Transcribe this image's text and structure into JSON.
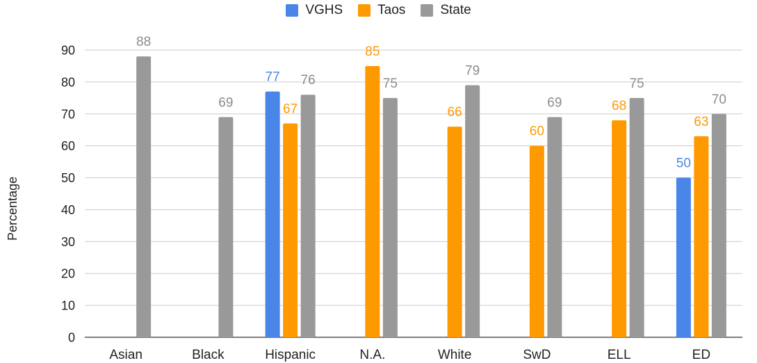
{
  "chart_data": {
    "type": "bar",
    "title": "",
    "xlabel": "",
    "ylabel": "Percentage",
    "ylim": [
      0,
      90
    ],
    "yticks": [
      0,
      10,
      20,
      30,
      40,
      50,
      60,
      70,
      80,
      90
    ],
    "categories": [
      "Asian",
      "Black",
      "Hispanic",
      "N.A.",
      "White",
      "SwD",
      "ELL",
      "ED"
    ],
    "series": [
      {
        "name": "VGHS",
        "color": "#4a86e8",
        "label_color": "#4a86e8",
        "values": [
          null,
          null,
          77,
          null,
          null,
          null,
          null,
          50
        ]
      },
      {
        "name": "Taos",
        "color": "#ff9900",
        "label_color": "#ff9900",
        "values": [
          null,
          null,
          67,
          85,
          66,
          60,
          68,
          63
        ]
      },
      {
        "name": "State",
        "color": "#999999",
        "label_color": "#8c8c8c",
        "values": [
          88,
          69,
          76,
          75,
          79,
          69,
          75,
          70
        ]
      }
    ],
    "grid": true,
    "legend_position": "top-center"
  }
}
